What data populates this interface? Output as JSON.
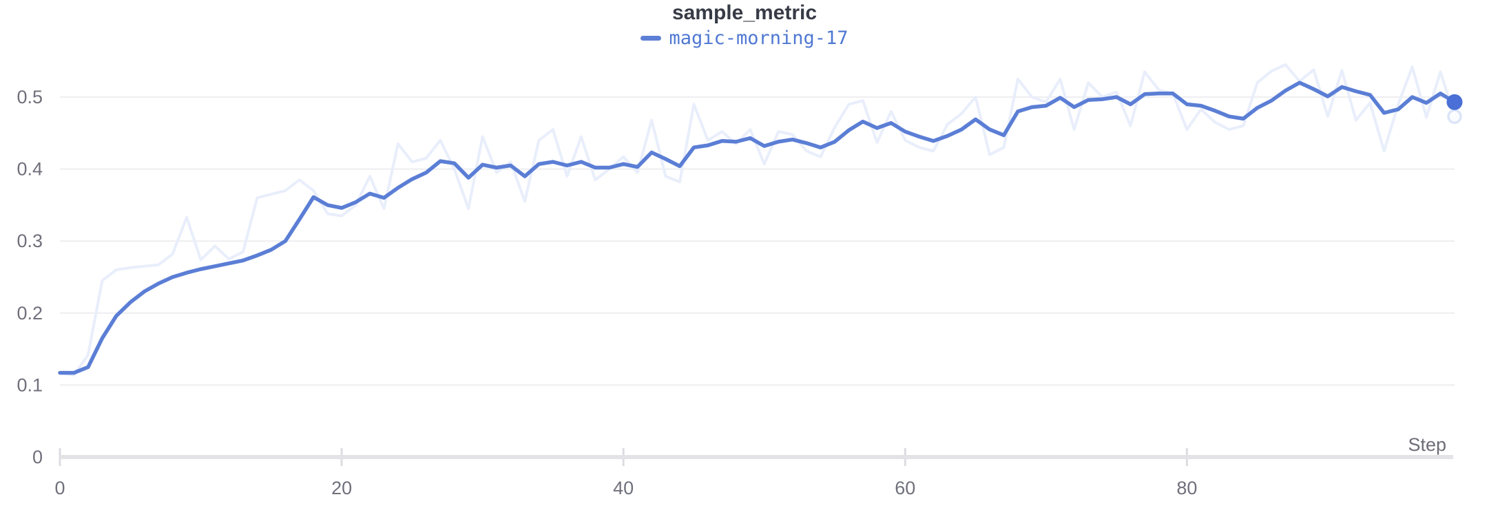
{
  "panel": {
    "title": "sample_metric",
    "legend": [
      {
        "label": "magic-morning-17",
        "swatch_color": "#5d80d6"
      }
    ],
    "xlabel": "Step"
  },
  "colors": {
    "title_text": "#373b46",
    "legend_text": "#4f78d2",
    "smoothed_line": "#5b7ed5",
    "original_line": "#e9eefb",
    "endpoint_dot": "#4a6fd6",
    "endpoint_ring_stroke": "#dce5f7",
    "endpoint_ring_fill": "#fbfcff",
    "gridline": "#eeeef1",
    "axis_line": "#e3e3e7",
    "tick_mark": "#dcdce1",
    "tick_label": "#70707c",
    "xlabel_text": "#6d6d78",
    "background": "#ffffff"
  },
  "chart_data": {
    "type": "line",
    "title": "sample_metric",
    "xlabel": "Step",
    "ylabel": "",
    "x_mode": "index (step 0..99, one point per step)",
    "xlim": [
      0,
      99
    ],
    "ylim": [
      0,
      0.56
    ],
    "x_ticks": [
      0,
      20,
      40,
      60,
      80
    ],
    "y_ticks": [
      0,
      0.1,
      0.2,
      0.3,
      0.4,
      0.5
    ],
    "grid": "horizontal gridlines only",
    "legend_position": "top-center",
    "series": [
      {
        "name": "magic-morning-17 (smoothed)",
        "role": "smoothed",
        "color": "#5b7ed5",
        "end_marker": "filled dot, last value 0.493",
        "values": [
          0.117,
          0.117,
          0.125,
          0.165,
          0.196,
          0.215,
          0.23,
          0.241,
          0.25,
          0.256,
          0.261,
          0.265,
          0.269,
          0.273,
          0.28,
          0.288,
          0.3,
          0.33,
          0.361,
          0.35,
          0.346,
          0.354,
          0.366,
          0.36,
          0.374,
          0.386,
          0.395,
          0.411,
          0.408,
          0.388,
          0.406,
          0.402,
          0.405,
          0.39,
          0.407,
          0.41,
          0.405,
          0.41,
          0.402,
          0.402,
          0.407,
          0.403,
          0.423,
          0.414,
          0.404,
          0.43,
          0.433,
          0.439,
          0.438,
          0.443,
          0.432,
          0.438,
          0.441,
          0.436,
          0.43,
          0.438,
          0.454,
          0.466,
          0.457,
          0.464,
          0.452,
          0.445,
          0.439,
          0.446,
          0.455,
          0.469,
          0.455,
          0.447,
          0.48,
          0.486,
          0.488,
          0.499,
          0.486,
          0.496,
          0.497,
          0.5,
          0.49,
          0.504,
          0.505,
          0.505,
          0.49,
          0.488,
          0.481,
          0.473,
          0.47,
          0.485,
          0.495,
          0.509,
          0.52,
          0.511,
          0.501,
          0.514,
          0.508,
          0.503,
          0.478,
          0.483,
          0.5,
          0.492,
          0.505,
          0.493
        ]
      },
      {
        "name": "magic-morning-17 (original, unsmoothed)",
        "role": "raw",
        "color": "#e9eefb",
        "end_marker": "hollow ring, last value 0.473",
        "values": [
          0.117,
          0.114,
          0.142,
          0.245,
          0.26,
          0.263,
          0.265,
          0.267,
          0.282,
          0.333,
          0.274,
          0.293,
          0.275,
          0.285,
          0.36,
          0.365,
          0.37,
          0.385,
          0.37,
          0.338,
          0.335,
          0.35,
          0.39,
          0.345,
          0.435,
          0.41,
          0.415,
          0.44,
          0.4,
          0.345,
          0.445,
          0.395,
          0.41,
          0.355,
          0.44,
          0.455,
          0.39,
          0.445,
          0.385,
          0.4,
          0.417,
          0.395,
          0.468,
          0.39,
          0.382,
          0.49,
          0.44,
          0.452,
          0.435,
          0.455,
          0.407,
          0.452,
          0.448,
          0.425,
          0.417,
          0.458,
          0.49,
          0.495,
          0.437,
          0.48,
          0.44,
          0.43,
          0.425,
          0.462,
          0.477,
          0.5,
          0.42,
          0.43,
          0.525,
          0.5,
          0.493,
          0.525,
          0.455,
          0.52,
          0.5,
          0.507,
          0.46,
          0.535,
          0.51,
          0.505,
          0.455,
          0.483,
          0.465,
          0.455,
          0.46,
          0.52,
          0.536,
          0.545,
          0.522,
          0.538,
          0.473,
          0.537,
          0.468,
          0.492,
          0.425,
          0.49,
          0.542,
          0.472,
          0.535,
          0.473
        ]
      }
    ]
  }
}
